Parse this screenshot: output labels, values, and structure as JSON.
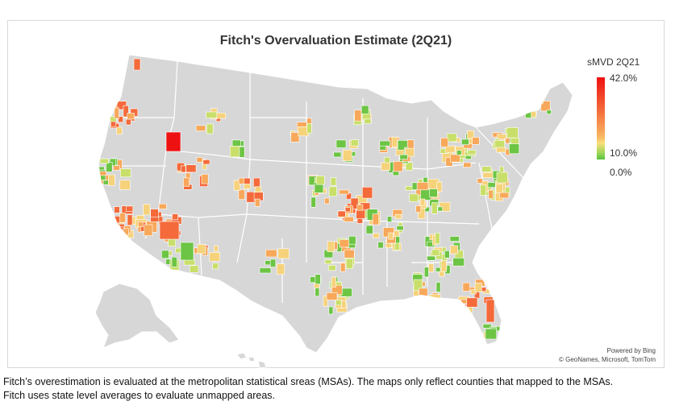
{
  "map": {
    "title": "Fitch's Overvaluation Estimate (2Q21)",
    "legend": {
      "title": "sMVD 2Q21",
      "max_label": "42.0%",
      "mid_label": "10.0%",
      "min_label": "0.0%"
    },
    "attribution": {
      "powered_by": "Powered by Bing",
      "credits": "© GeoNames, Microsoft, TomTom"
    },
    "colors": {
      "base_land": "#d7d7d7",
      "border": "#ffffff",
      "very_high": "#ee1111",
      "high": "#f46a3a",
      "upper_mid": "#f8a85a",
      "mid": "#f6d27a",
      "low": "#c8df6a",
      "very_low": "#6cc544"
    }
  },
  "caption": {
    "line1": "Fitch’s overestimation is evaluated at the metropolitan statistical sreas (MSAs). The maps only reflect counties that mapped to the MSAs.",
    "line2": "Fitch uses state level averages to evaluate unmapped areas."
  }
}
